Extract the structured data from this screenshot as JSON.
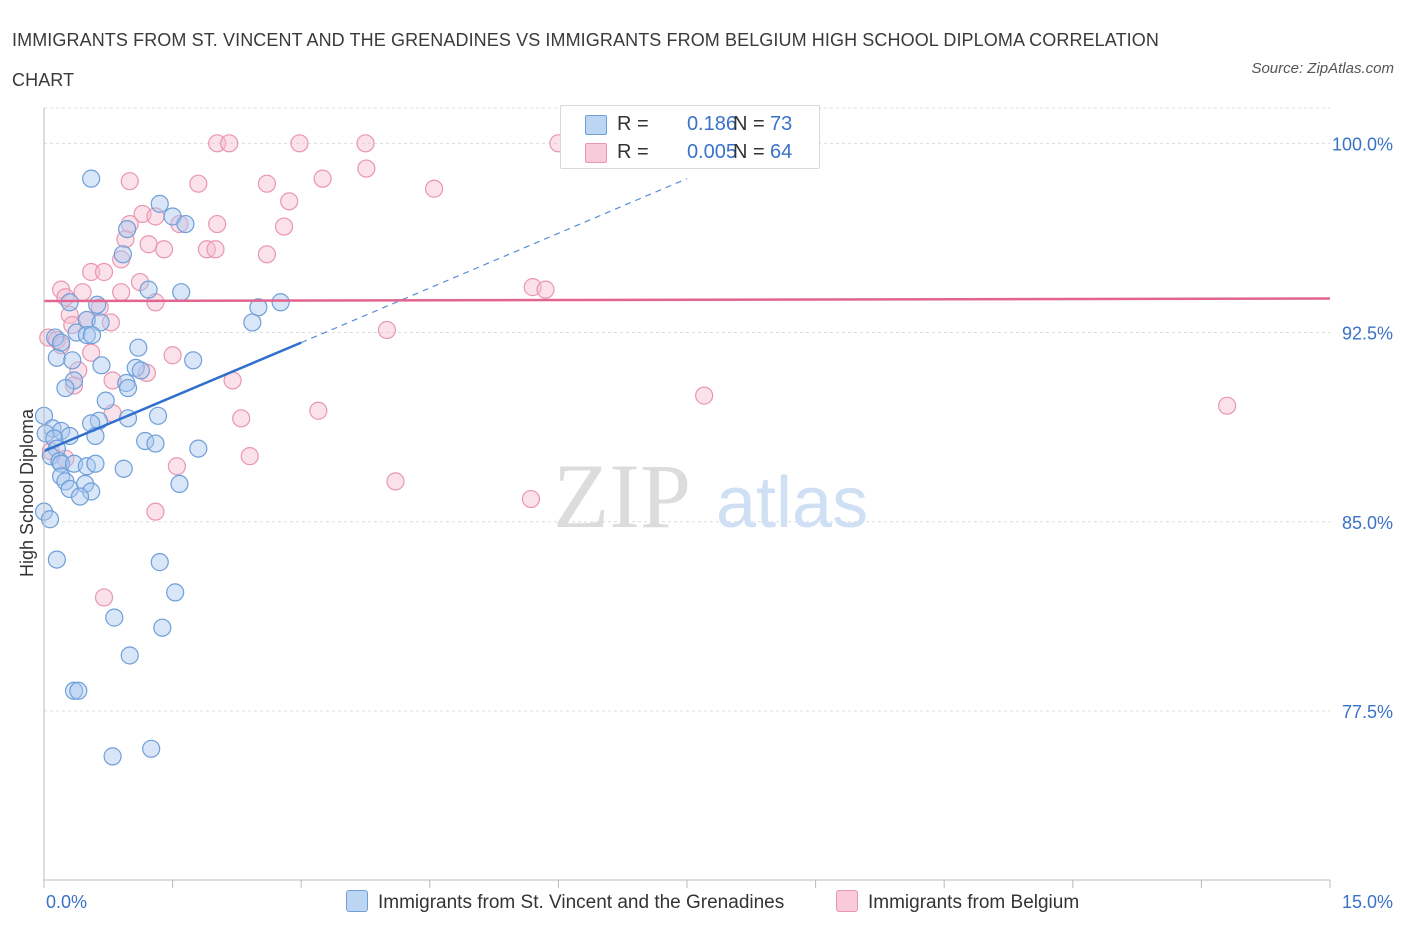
{
  "title": "IMMIGRANTS FROM ST. VINCENT AND THE GRENADINES VS IMMIGRANTS FROM BELGIUM HIGH SCHOOL DIPLOMA CORRELATION CHART",
  "source": "Source: ZipAtlas.com",
  "watermark": {
    "zip": "ZIP",
    "atlas": "atlas"
  },
  "legend": {
    "r_label": "R =",
    "n_label": "N =",
    "series1": {
      "r": "0.186",
      "n": "73"
    },
    "series2": {
      "r": "0.005",
      "n": "64"
    }
  },
  "colors": {
    "blue_fill": "#a9c8ef",
    "blue_stroke": "#6f9fd8",
    "blue_line": "#2f6fce",
    "pink_fill": "#f6bdd0",
    "pink_stroke": "#e996b2",
    "pink_line": "#e2648f",
    "axis_text": "#3a72c8",
    "grid": "#dcdcdc"
  },
  "chart_data": {
    "type": "scatter",
    "title": "IMMIGRANTS FROM ST. VINCENT AND THE GRENADINES VS IMMIGRANTS FROM BELGIUM HIGH SCHOOL DIPLOMA CORRELATION CHART",
    "xlabel": "",
    "ylabel": "High School Diploma",
    "xlim": [
      0,
      15
    ],
    "ylim": [
      70.8,
      101.4
    ],
    "x_tick_labels": [
      "0.0%",
      "15.0%"
    ],
    "y_ticks": [
      77.5,
      85.0,
      92.5,
      100.0
    ],
    "y_tick_labels": [
      "77.5%",
      "85.0%",
      "92.5%",
      "100.0%"
    ],
    "series": [
      {
        "name": "Immigrants from St. Vincent and the Grenadines",
        "color": "#a9c8ef",
        "trend": {
          "x0": 0.0,
          "y0": 87.8,
          "x1": 3.0,
          "y1": 92.1,
          "dash_to_x": 7.5,
          "dash_to_y": 98.6
        },
        "points": [
          [
            0.55,
            98.6
          ],
          [
            1.35,
            97.6
          ],
          [
            1.5,
            97.1
          ],
          [
            1.65,
            96.8
          ],
          [
            0.97,
            96.6
          ],
          [
            0.92,
            95.6
          ],
          [
            1.22,
            94.2
          ],
          [
            1.6,
            94.1
          ],
          [
            0.3,
            93.7
          ],
          [
            2.76,
            93.7
          ],
          [
            2.5,
            93.5
          ],
          [
            0.5,
            93.0
          ],
          [
            0.66,
            92.9
          ],
          [
            2.43,
            92.9
          ],
          [
            0.38,
            92.5
          ],
          [
            0.5,
            92.4
          ],
          [
            0.56,
            92.4
          ],
          [
            0.13,
            92.3
          ],
          [
            1.1,
            91.9
          ],
          [
            0.15,
            91.5
          ],
          [
            0.33,
            91.4
          ],
          [
            1.74,
            91.4
          ],
          [
            0.67,
            91.2
          ],
          [
            1.07,
            91.1
          ],
          [
            0.35,
            90.6
          ],
          [
            0.96,
            90.5
          ],
          [
            0.25,
            90.3
          ],
          [
            0.72,
            89.8
          ],
          [
            0.0,
            89.2
          ],
          [
            0.64,
            89.0
          ],
          [
            0.98,
            89.1
          ],
          [
            1.33,
            89.2
          ],
          [
            0.55,
            88.9
          ],
          [
            0.1,
            88.7
          ],
          [
            0.02,
            88.5
          ],
          [
            0.2,
            88.6
          ],
          [
            0.12,
            88.3
          ],
          [
            0.3,
            88.4
          ],
          [
            0.6,
            88.4
          ],
          [
            1.18,
            88.2
          ],
          [
            1.3,
            88.1
          ],
          [
            0.15,
            87.9
          ],
          [
            1.8,
            87.9
          ],
          [
            0.08,
            87.6
          ],
          [
            0.18,
            87.4
          ],
          [
            0.2,
            87.3
          ],
          [
            0.35,
            87.3
          ],
          [
            0.5,
            87.2
          ],
          [
            0.6,
            87.3
          ],
          [
            0.93,
            87.1
          ],
          [
            0.2,
            86.8
          ],
          [
            0.25,
            86.6
          ],
          [
            0.48,
            86.5
          ],
          [
            1.58,
            86.5
          ],
          [
            0.3,
            86.3
          ],
          [
            0.55,
            86.2
          ],
          [
            0.42,
            86.0
          ],
          [
            0.0,
            85.4
          ],
          [
            0.07,
            85.1
          ],
          [
            0.15,
            83.5
          ],
          [
            1.35,
            83.4
          ],
          [
            1.53,
            82.2
          ],
          [
            0.82,
            81.2
          ],
          [
            1.38,
            80.8
          ],
          [
            1.0,
            79.7
          ],
          [
            0.35,
            78.3
          ],
          [
            0.4,
            78.3
          ],
          [
            0.8,
            75.7
          ],
          [
            1.25,
            76.0
          ],
          [
            0.62,
            93.6
          ],
          [
            0.2,
            92.1
          ],
          [
            0.98,
            90.3
          ],
          [
            1.13,
            91.0
          ]
        ]
      },
      {
        "name": "Immigrants from Belgium",
        "color": "#f6bdd0",
        "trend": {
          "x0": 0.0,
          "y0": 93.75,
          "x1": 15.0,
          "y1": 93.85
        },
        "points": [
          [
            2.02,
            100.0
          ],
          [
            2.16,
            100.0
          ],
          [
            2.98,
            100.0
          ],
          [
            3.75,
            100.0
          ],
          [
            6.0,
            100.0
          ],
          [
            3.76,
            99.0
          ],
          [
            1.0,
            98.5
          ],
          [
            1.8,
            98.4
          ],
          [
            2.6,
            98.4
          ],
          [
            3.25,
            98.6
          ],
          [
            4.55,
            98.2
          ],
          [
            2.86,
            97.7
          ],
          [
            1.15,
            97.2
          ],
          [
            1.3,
            97.1
          ],
          [
            1.0,
            96.8
          ],
          [
            2.02,
            96.8
          ],
          [
            1.58,
            96.8
          ],
          [
            2.8,
            96.7
          ],
          [
            0.95,
            96.2
          ],
          [
            1.22,
            96.0
          ],
          [
            1.4,
            95.8
          ],
          [
            1.9,
            95.8
          ],
          [
            2.0,
            95.8
          ],
          [
            2.6,
            95.6
          ],
          [
            0.9,
            95.4
          ],
          [
            0.55,
            94.9
          ],
          [
            0.7,
            94.9
          ],
          [
            1.12,
            94.5
          ],
          [
            0.2,
            94.2
          ],
          [
            0.45,
            94.1
          ],
          [
            0.9,
            94.1
          ],
          [
            0.25,
            93.9
          ],
          [
            1.3,
            93.7
          ],
          [
            0.65,
            93.5
          ],
          [
            5.7,
            94.3
          ],
          [
            5.85,
            94.2
          ],
          [
            0.5,
            93.0
          ],
          [
            0.3,
            93.2
          ],
          [
            0.78,
            92.9
          ],
          [
            4.0,
            92.6
          ],
          [
            0.05,
            92.3
          ],
          [
            0.15,
            92.2
          ],
          [
            0.2,
            92.0
          ],
          [
            0.55,
            91.7
          ],
          [
            1.5,
            91.6
          ],
          [
            0.4,
            91.0
          ],
          [
            1.2,
            90.9
          ],
          [
            2.2,
            90.6
          ],
          [
            0.35,
            90.4
          ],
          [
            0.8,
            90.6
          ],
          [
            7.7,
            90.0
          ],
          [
            13.8,
            89.6
          ],
          [
            3.2,
            89.4
          ],
          [
            2.3,
            89.1
          ],
          [
            0.8,
            89.3
          ],
          [
            2.4,
            87.6
          ],
          [
            1.55,
            87.2
          ],
          [
            0.25,
            87.5
          ],
          [
            0.08,
            87.8
          ],
          [
            4.1,
            86.6
          ],
          [
            5.68,
            85.9
          ],
          [
            1.3,
            85.4
          ],
          [
            0.7,
            82.0
          ],
          [
            0.33,
            92.8
          ]
        ]
      }
    ]
  },
  "bottom_legend": {
    "series1": "Immigrants from St. Vincent and the Grenadines",
    "series2": "Immigrants from Belgium"
  }
}
